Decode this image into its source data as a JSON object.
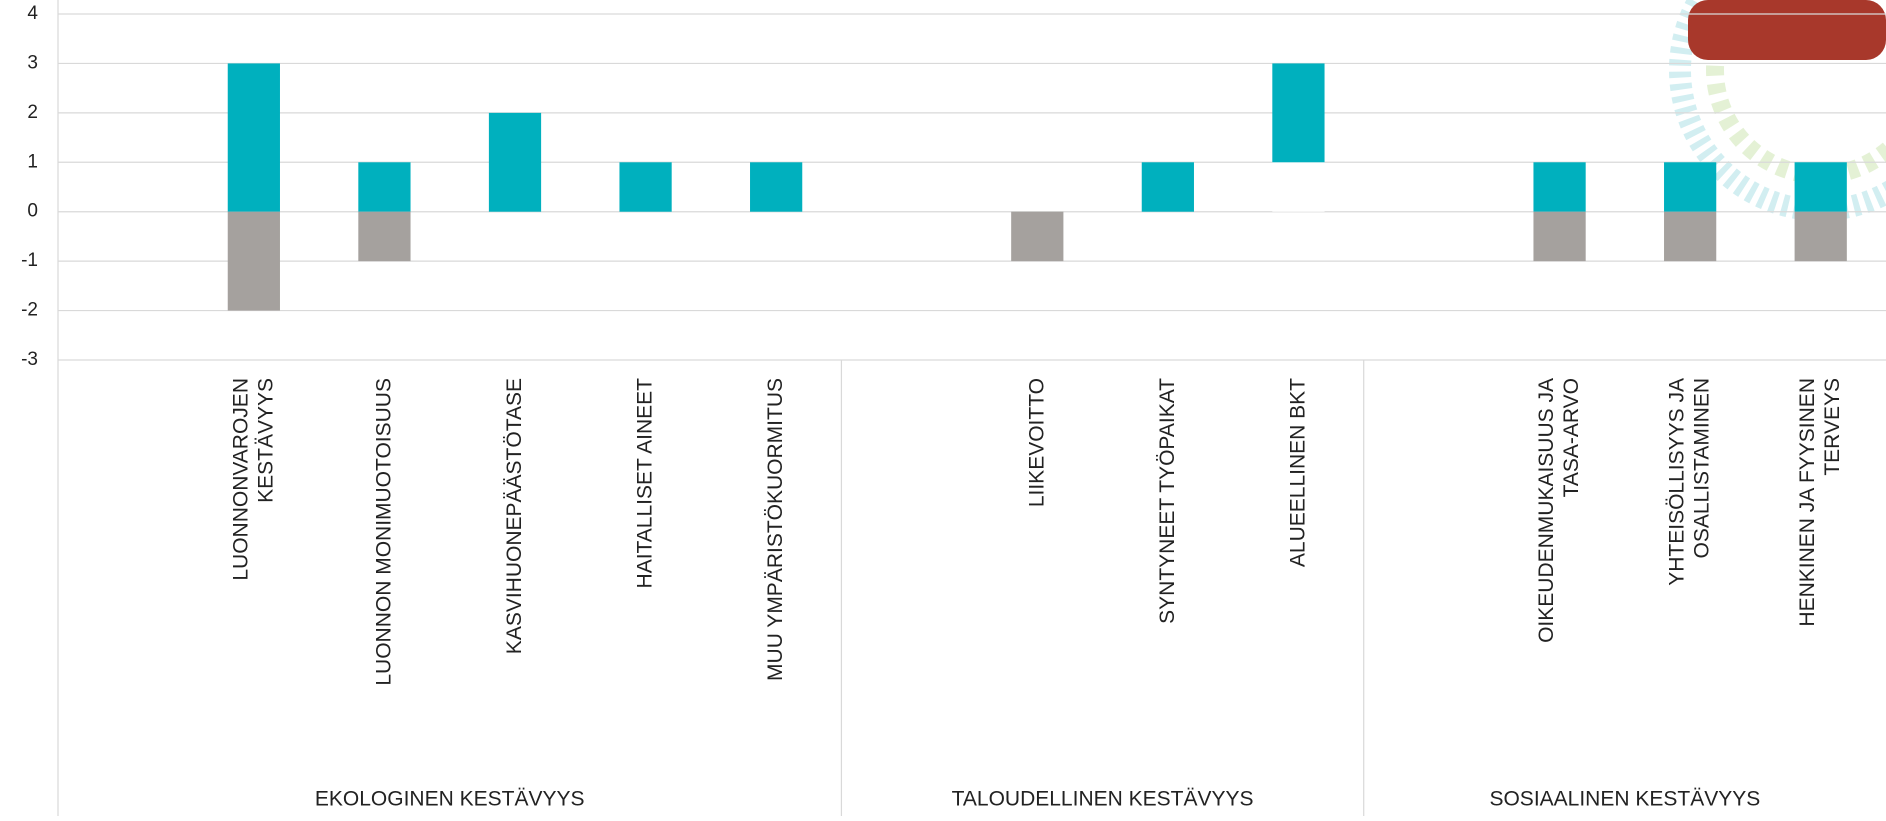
{
  "chart_data": {
    "type": "bar",
    "categories": [
      null,
      [
        "LUONNONVAROJEN",
        "KESTÄVYYS"
      ],
      [
        "LUONNON MONIMUOTOISUUS"
      ],
      [
        "KASVIHUONEPÄÄSTÖTASE"
      ],
      [
        "HAITALLISET AINEET"
      ],
      [
        "MUU YMPÄRISTÖKUORMITUS"
      ],
      null,
      [
        "LIIKEVOITTO"
      ],
      [
        "SYNTYNEET TYÖPAIKAT"
      ],
      [
        "ALUEELLINEN BKT"
      ],
      null,
      [
        "OIKEUDENMUKAISUUS JA",
        "TASA-ARVO"
      ],
      [
        "YHTEISÖLLISYYS JA",
        "OSALLISTAMINEN"
      ],
      [
        "HENKINEN JA FYYSINEN",
        "TERVEYS"
      ]
    ],
    "groups": [
      {
        "label": "EKOLOGINEN KESTÄVYYS",
        "span": 6
      },
      {
        "label": "TALOUDELLINEN KESTÄVYYS",
        "span": 4
      },
      {
        "label": "SOSIAALINEN KESTÄVYYS",
        "span": 4
      }
    ],
    "series": [
      {
        "color": "#ffffff",
        "values": [
          null,
          null,
          null,
          null,
          null,
          null,
          null,
          null,
          null,
          1,
          null,
          null,
          null,
          null
        ]
      },
      {
        "color": "#00b0be",
        "values": [
          null,
          3,
          1,
          2,
          1,
          1,
          null,
          null,
          1,
          2,
          null,
          1,
          1,
          1
        ]
      },
      {
        "color": "#a5a19e",
        "values": [
          null,
          -2,
          -1,
          null,
          null,
          null,
          null,
          -1,
          null,
          null,
          null,
          -1,
          -1,
          -1
        ]
      }
    ],
    "ylim": [
      -3,
      4
    ],
    "yticks": [
      -3,
      -2,
      -1,
      0,
      1,
      2,
      3,
      4
    ],
    "grid": true
  }
}
